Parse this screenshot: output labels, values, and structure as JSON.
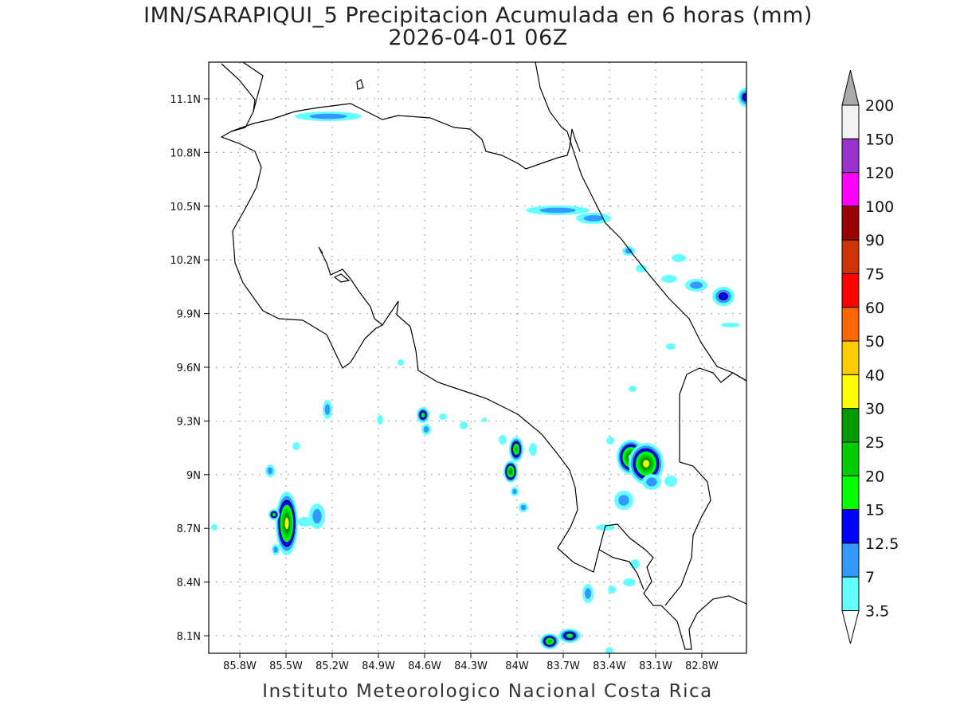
{
  "title": "IMN/SARAPIQUI_5 Precipitacion Acumulada en 6 horas (mm)",
  "subtitle": "2026-04-01 06Z",
  "credit": "Instituto Meteorologico Nacional Costa Rica",
  "lat_ticks": [
    "11.1N",
    "10.8N",
    "10.5N",
    "10.2N",
    "9.9N",
    "9.6N",
    "9.3N",
    "9N",
    "8.7N",
    "8.4N",
    "8.1N"
  ],
  "lon_ticks": [
    "85.8W",
    "85.5W",
    "85.2W",
    "84.9W",
    "84.6W",
    "84.3W",
    "84W",
    "83.7W",
    "83.4W",
    "83.1W",
    "82.8W"
  ],
  "colorbar": {
    "labels": [
      "3.5",
      "7",
      "12.5",
      "15",
      "20",
      "25",
      "30",
      "40",
      "50",
      "60",
      "75",
      "90",
      "100",
      "120",
      "150",
      "200"
    ],
    "colors": [
      "#66ffff",
      "#3399ff",
      "#0000ff",
      "#00ff00",
      "#00cc00",
      "#009900",
      "#ffff00",
      "#ffcc00",
      "#ff6600",
      "#ff0000",
      "#cc3300",
      "#990000",
      "#ff00ff",
      "#9933cc",
      "#f2f2f2"
    ],
    "over_color": "#aaaaaa"
  }
}
